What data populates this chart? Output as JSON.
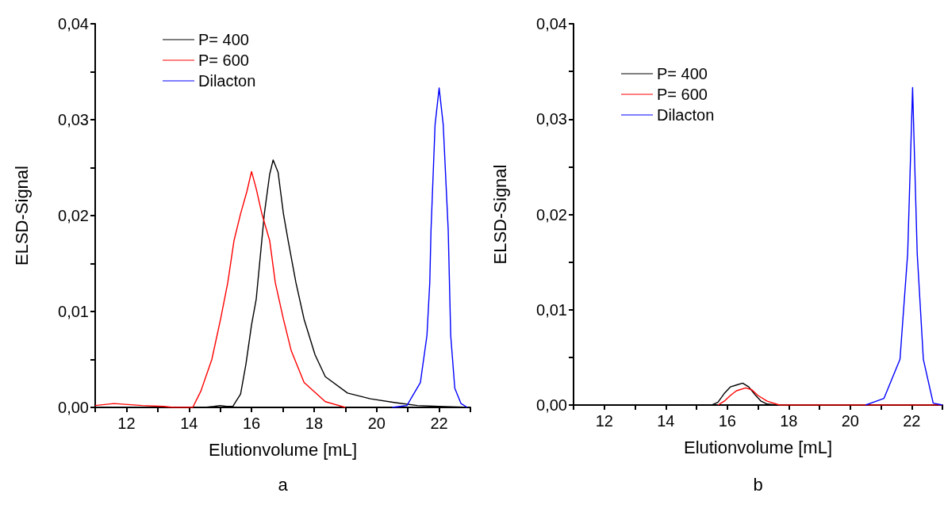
{
  "chart_data": [
    {
      "type": "line",
      "xlabel": "Elutionvolume [mL]",
      "ylabel": "ELSD-Signal",
      "annotations": [
        "a"
      ],
      "legend": "top left",
      "marker": "none",
      "line_style": "solid",
      "xlim": [
        11,
        23
      ],
      "xticks": [
        {
          "value": 11,
          "label": null
        },
        12,
        {
          "value": 13,
          "label": null
        },
        14,
        {
          "value": 15,
          "label": null
        },
        16,
        {
          "value": 17,
          "label": null
        },
        18,
        {
          "value": 19,
          "label": null
        },
        20,
        {
          "value": 21,
          "label": null
        },
        22,
        {
          "value": 23,
          "label": null
        }
      ],
      "ylim": [
        0,
        0.04
      ],
      "yticks": [
        {
          "value": 0,
          "label": "0,00"
        },
        {
          "value": 0.005,
          "label": null
        },
        {
          "value": 0.01,
          "label": "0,01"
        },
        {
          "value": 0.015,
          "label": null
        },
        {
          "value": 0.02,
          "label": "0,02"
        },
        {
          "value": 0.025,
          "label": null
        },
        {
          "value": 0.03,
          "label": "0,03"
        },
        {
          "value": 0.035,
          "label": null
        },
        {
          "value": 0.04,
          "label": "0,04"
        }
      ],
      "series": [
        {
          "name": "P= 400",
          "color": "#000000",
          "x": [
            11,
            14.5,
            14.8,
            15.0,
            15.2,
            15.4,
            15.65,
            15.82,
            16.0,
            16.15,
            16.41,
            16.58,
            16.69,
            16.85,
            17.02,
            17.17,
            17.42,
            17.68,
            18.03,
            18.36,
            19.07,
            19.8,
            20.6,
            21.3,
            22,
            23
          ],
          "values": [
            0,
            0,
            0.0001,
            0.0002,
            0.0001,
            0.0001,
            0.0014,
            0.0045,
            0.0086,
            0.0113,
            0.0202,
            0.0243,
            0.0258,
            0.0245,
            0.0202,
            0.0174,
            0.013,
            0.0092,
            0.0055,
            0.0032,
            0.0015,
            0.0009,
            0.0005,
            0.0002,
            0.0001,
            0
          ]
        },
        {
          "name": "P= 600",
          "color": "#ff0000",
          "x": [
            11,
            11.6,
            12.5,
            13.2,
            13.5,
            14.12,
            14.38,
            14.73,
            15.01,
            15.24,
            15.44,
            15.65,
            15.85,
            16.0,
            16.15,
            16.33,
            16.58,
            16.76,
            17.02,
            17.27,
            17.68,
            18.36,
            19.0
          ],
          "values": [
            0.0002,
            0.0004,
            0.0002,
            0.0001,
            0,
            0,
            0.0017,
            0.005,
            0.0092,
            0.013,
            0.0174,
            0.0202,
            0.0225,
            0.0246,
            0.0228,
            0.0202,
            0.0174,
            0.013,
            0.0092,
            0.0059,
            0.0026,
            0.0006,
            0
          ]
        },
        {
          "name": "Dilacton",
          "color": "#0000ff",
          "x": [
            20.5,
            20.97,
            21.4,
            21.61,
            21.7,
            21.74,
            21.87,
            22.0,
            22.13,
            22.29,
            22.33,
            22.37,
            22.5,
            22.7,
            22.9
          ],
          "values": [
            0,
            0.0002,
            0.0026,
            0.0075,
            0.013,
            0.0185,
            0.0295,
            0.0333,
            0.0295,
            0.0185,
            0.013,
            0.0075,
            0.002,
            0.0004,
            0
          ]
        }
      ]
    },
    {
      "type": "line",
      "xlabel": "Elutionvolume [mL]",
      "ylabel": "ELSD-Signal",
      "annotations": [
        "b"
      ],
      "legend": "top left",
      "marker": "none",
      "line_style": "solid",
      "xlim": [
        11,
        23
      ],
      "xticks": [
        {
          "value": 11,
          "label": null
        },
        12,
        {
          "value": 13,
          "label": null
        },
        14,
        {
          "value": 15,
          "label": null
        },
        16,
        {
          "value": 17,
          "label": null
        },
        18,
        {
          "value": 19,
          "label": null
        },
        20,
        {
          "value": 21,
          "label": null
        },
        22,
        {
          "value": 23,
          "label": null
        }
      ],
      "ylim": [
        0,
        0.04
      ],
      "yticks": [
        {
          "value": 0,
          "label": "0,00"
        },
        {
          "value": 0.005,
          "label": null
        },
        {
          "value": 0.01,
          "label": "0,01"
        },
        {
          "value": 0.015,
          "label": null
        },
        {
          "value": 0.02,
          "label": "0,02"
        },
        {
          "value": 0.025,
          "label": null
        },
        {
          "value": 0.03,
          "label": "0,03"
        },
        {
          "value": 0.035,
          "label": null
        },
        {
          "value": 0.04,
          "label": "0,04"
        }
      ],
      "series": [
        {
          "name": "P= 400",
          "color": "#000000",
          "x": [
            11,
            15.5,
            15.7,
            15.9,
            16.1,
            16.3,
            16.5,
            16.7,
            16.9,
            17.1,
            17.3,
            17.6,
            23
          ],
          "values": [
            0,
            0,
            0.0003,
            0.0012,
            0.0019,
            0.0021,
            0.0023,
            0.0019,
            0.0011,
            0.0004,
            0.0001,
            0,
            0
          ]
        },
        {
          "name": "P= 600",
          "color": "#ff0000",
          "x": [
            15.7,
            15.9,
            16.1,
            16.3,
            16.6,
            16.8,
            17.0,
            17.3,
            17.7,
            23
          ],
          "values": [
            0,
            0.0004,
            0.001,
            0.0015,
            0.0018,
            0.0016,
            0.001,
            0.0004,
            0,
            0
          ]
        },
        {
          "name": "Dilacton",
          "color": "#0000ff",
          "x": [
            20.5,
            21.1,
            21.62,
            21.87,
            22.03,
            22.18,
            22.38,
            22.7,
            23
          ],
          "values": [
            0,
            0.0007,
            0.0048,
            0.0159,
            0.0333,
            0.0159,
            0.0048,
            0.0002,
            0
          ]
        }
      ]
    }
  ]
}
